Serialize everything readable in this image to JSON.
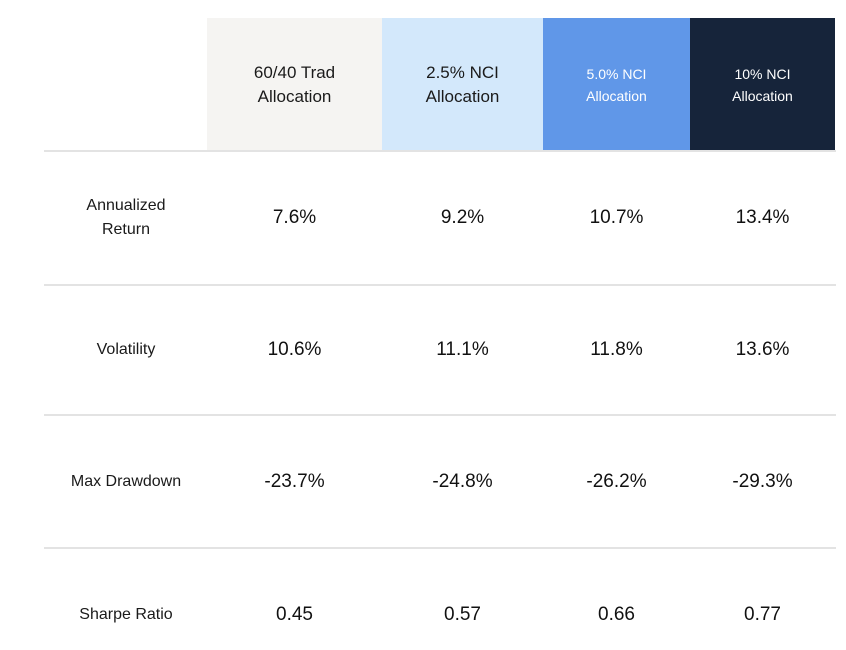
{
  "chart_data": {
    "type": "table",
    "columns": [
      "60/40 Trad\nAllocation",
      "2.5% NCI\nAllocation",
      "5.0% NCI\nAllocation",
      "10% NCI\nAllocation"
    ],
    "column_colors": [
      "#f5f4f2",
      "#d3e8fb",
      "#6097e8",
      "#16243a"
    ],
    "rows": [
      {
        "label": "Annualized\nReturn",
        "values": [
          "7.6%",
          "9.2%",
          "10.7%",
          "13.4%"
        ]
      },
      {
        "label": "Volatility",
        "values": [
          "10.6%",
          "11.1%",
          "11.8%",
          "13.6%"
        ]
      },
      {
        "label": "Max Drawdown",
        "values": [
          "-23.7%",
          "-24.8%",
          "-26.2%",
          "-29.3%"
        ]
      },
      {
        "label": "Sharpe Ratio",
        "values": [
          "0.45",
          "0.57",
          "0.66",
          "0.77"
        ]
      }
    ]
  }
}
